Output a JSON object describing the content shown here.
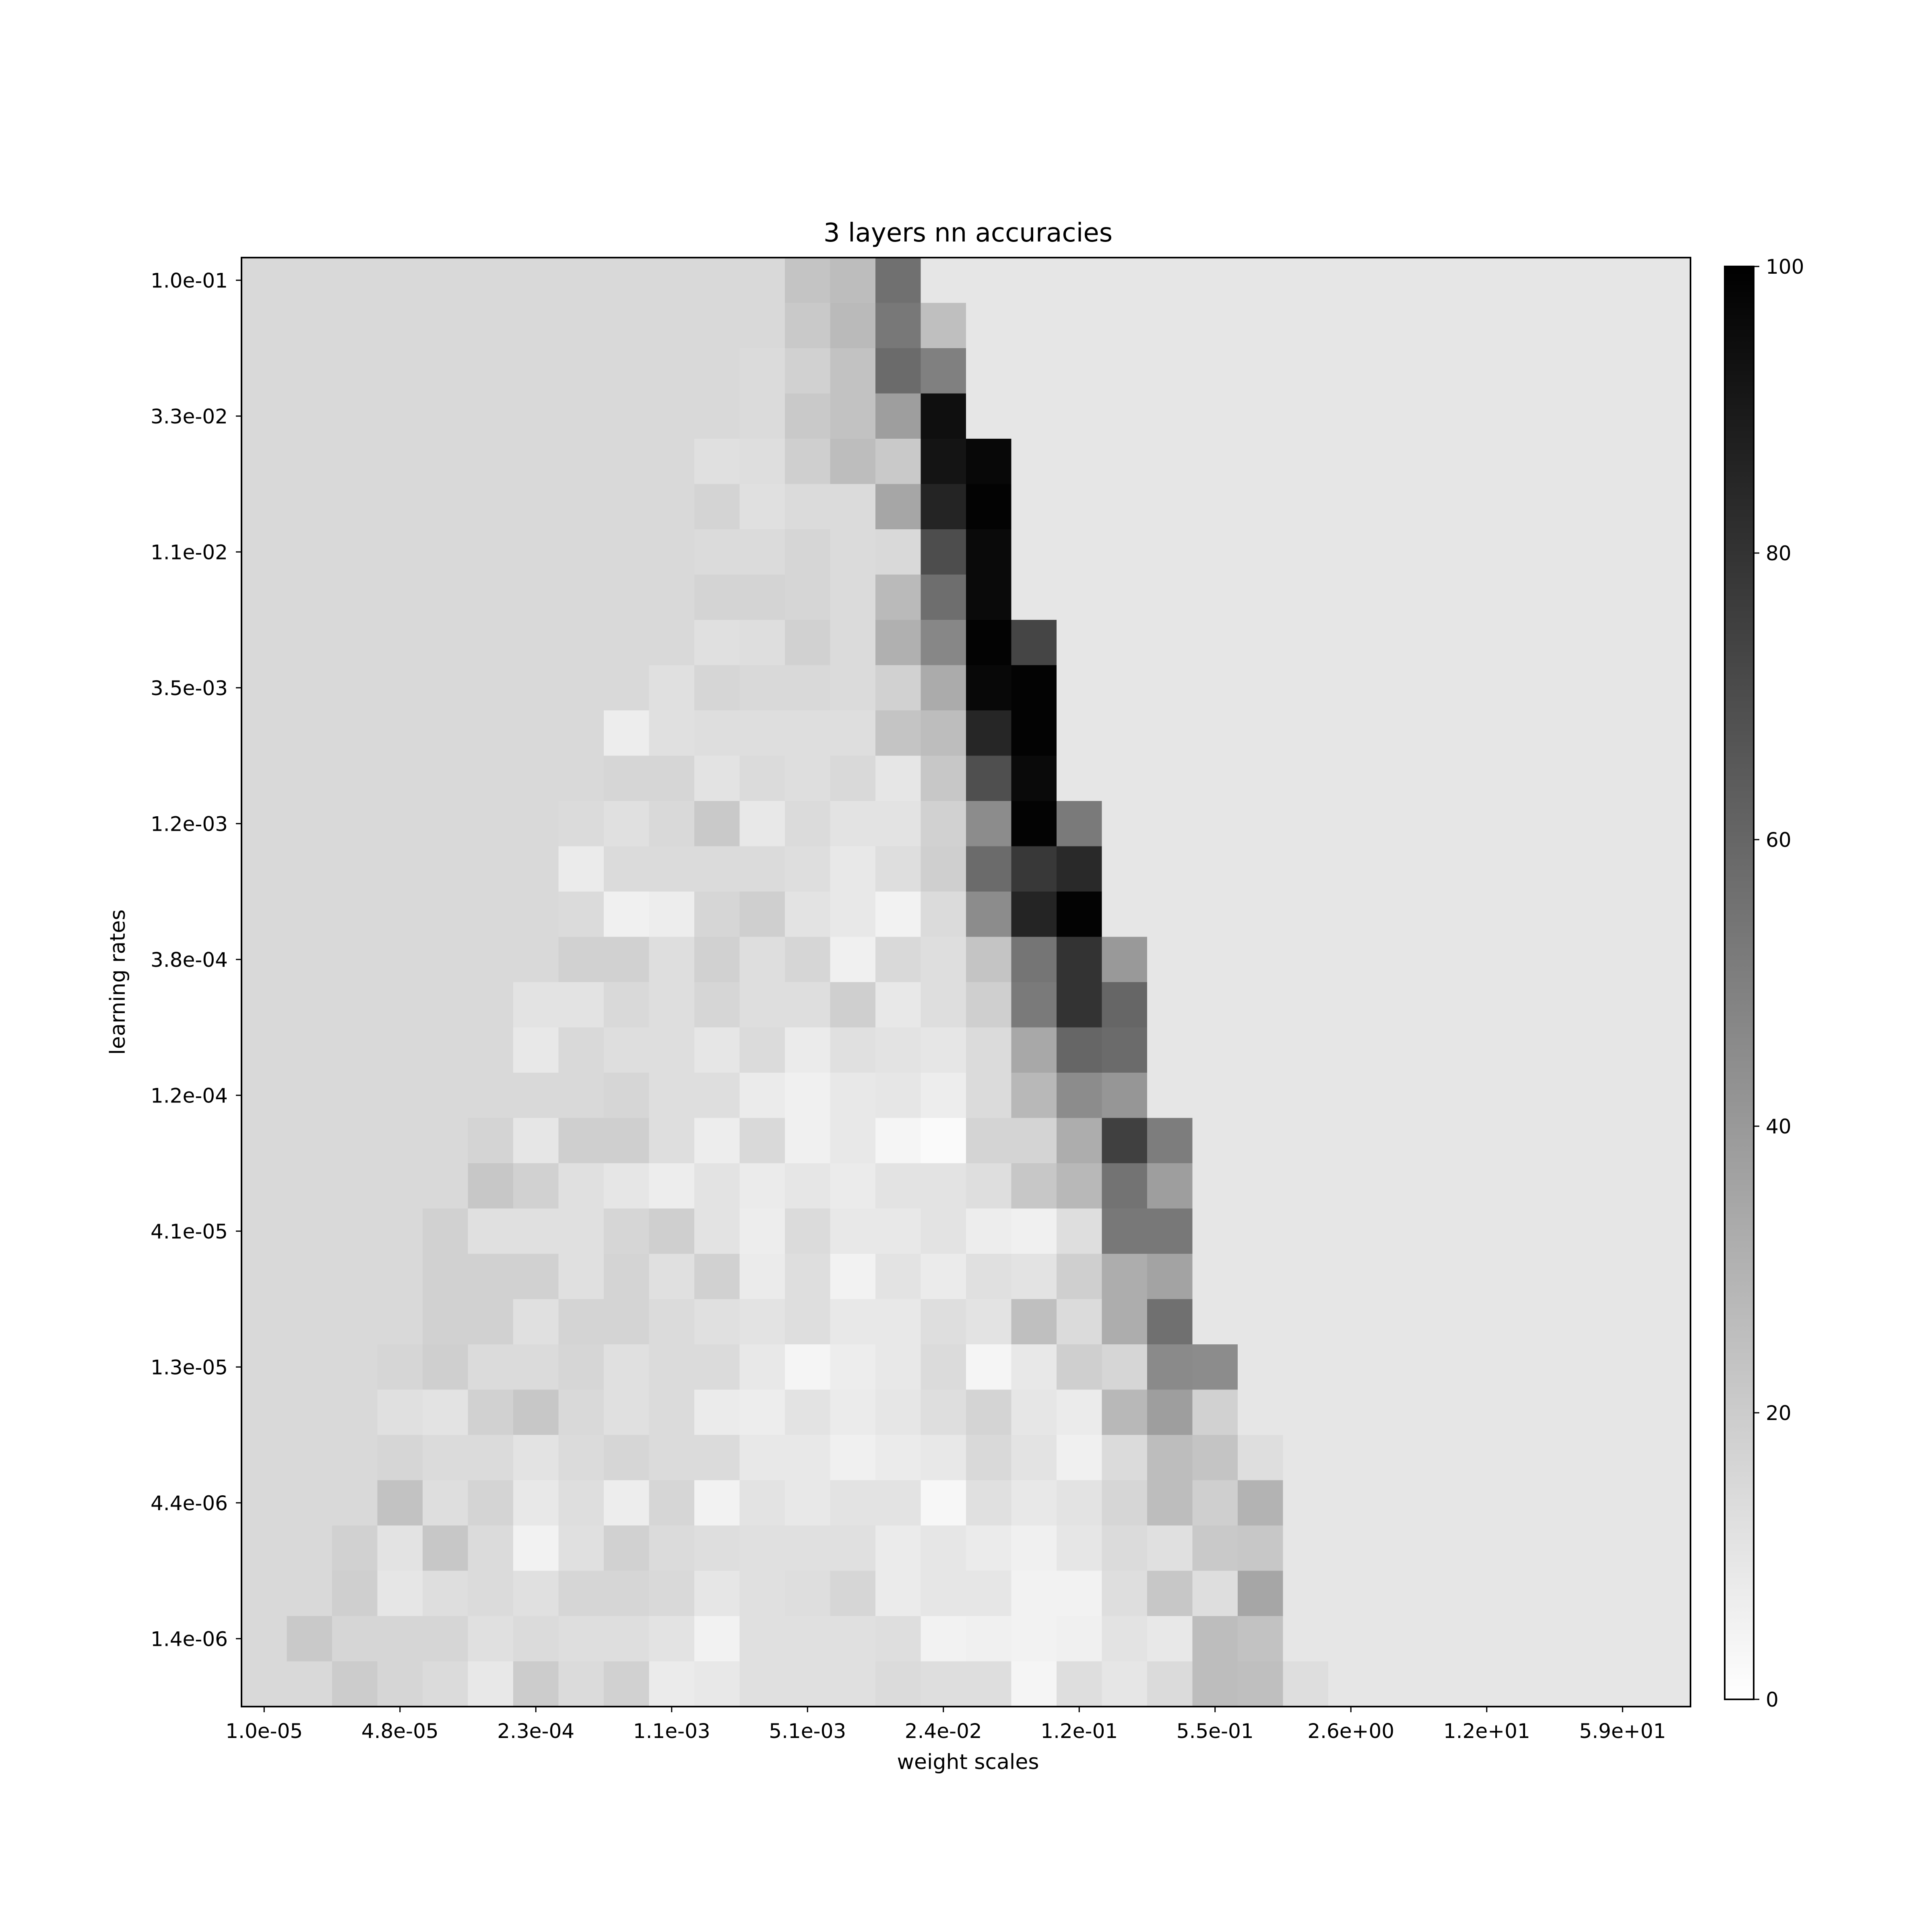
{
  "chart_data": {
    "type": "heatmap",
    "title": "3 layers nn accuracies",
    "xlabel": "weight scales",
    "ylabel": "learning rates",
    "colormap": "grayscale_reversed",
    "grid": false,
    "legend": "colorbar-right",
    "x_tick_labels": [
      "1.0e-05",
      "4.8e-05",
      "2.3e-04",
      "1.1e-03",
      "5.1e-03",
      "2.4e-02",
      "1.2e-01",
      "5.5e-01",
      "2.6e+00",
      "1.2e+01",
      "5.9e+01"
    ],
    "y_tick_labels": [
      "1.0e-01",
      "3.3e-02",
      "1.1e-02",
      "3.5e-03",
      "1.2e-03",
      "3.8e-04",
      "1.2e-04",
      "4.1e-05",
      "1.3e-05",
      "4.4e-06",
      "1.4e-06"
    ],
    "colorbar": {
      "min": 0,
      "max": 100,
      "ticks": [
        "0",
        "20",
        "40",
        "60",
        "80",
        "100"
      ]
    },
    "x_count": 32,
    "y_count": 32,
    "values": [
      [
        15,
        15,
        15,
        15,
        15,
        15,
        15,
        15,
        15,
        15,
        15,
        15,
        23,
        26,
        56,
        10,
        10,
        10,
        10,
        10,
        10,
        10,
        10,
        10,
        10,
        10,
        10,
        10,
        10,
        10,
        10,
        10
      ],
      [
        15,
        15,
        15,
        15,
        15,
        15,
        15,
        15,
        15,
        15,
        15,
        15,
        21,
        27,
        53,
        25,
        10,
        10,
        10,
        10,
        10,
        10,
        10,
        10,
        10,
        10,
        10,
        10,
        10,
        10,
        10,
        10
      ],
      [
        15,
        15,
        15,
        15,
        15,
        15,
        15,
        15,
        15,
        15,
        15,
        14,
        18,
        24,
        58,
        50,
        10,
        10,
        10,
        10,
        10,
        10,
        10,
        10,
        10,
        10,
        10,
        10,
        10,
        10,
        10,
        10
      ],
      [
        15,
        15,
        15,
        15,
        15,
        15,
        15,
        15,
        15,
        15,
        15,
        14,
        21,
        24,
        38,
        94,
        10,
        10,
        10,
        10,
        10,
        10,
        10,
        10,
        10,
        10,
        10,
        10,
        10,
        10,
        10,
        10
      ],
      [
        15,
        15,
        15,
        15,
        15,
        15,
        15,
        15,
        15,
        15,
        12,
        13,
        19,
        26,
        21,
        92,
        97,
        10,
        10,
        10,
        10,
        10,
        10,
        10,
        10,
        10,
        10,
        10,
        10,
        10,
        10,
        10
      ],
      [
        15,
        15,
        15,
        15,
        15,
        15,
        15,
        15,
        15,
        15,
        17,
        12,
        14,
        14,
        35,
        86,
        99,
        10,
        10,
        10,
        10,
        10,
        10,
        10,
        10,
        10,
        10,
        10,
        10,
        10,
        10,
        10
      ],
      [
        15,
        15,
        15,
        15,
        15,
        15,
        15,
        15,
        15,
        15,
        14,
        14,
        16,
        14,
        15,
        70,
        96,
        10,
        10,
        10,
        10,
        10,
        10,
        10,
        10,
        10,
        10,
        10,
        10,
        10,
        10,
        10
      ],
      [
        15,
        15,
        15,
        15,
        15,
        15,
        15,
        15,
        15,
        15,
        17,
        17,
        16,
        14,
        27,
        57,
        96,
        10,
        10,
        10,
        10,
        10,
        10,
        10,
        10,
        10,
        10,
        10,
        10,
        10,
        10,
        10
      ],
      [
        15,
        15,
        15,
        15,
        15,
        15,
        15,
        15,
        15,
        15,
        12,
        13,
        18,
        14,
        31,
        47,
        99,
        73,
        10,
        10,
        10,
        10,
        10,
        10,
        10,
        10,
        10,
        10,
        10,
        10,
        10,
        10
      ],
      [
        15,
        15,
        15,
        15,
        15,
        15,
        15,
        15,
        15,
        12,
        16,
        15,
        15,
        14,
        18,
        33,
        97,
        99,
        10,
        10,
        10,
        10,
        10,
        10,
        10,
        10,
        10,
        10,
        10,
        10,
        10,
        10
      ],
      [
        15,
        15,
        15,
        15,
        15,
        15,
        15,
        15,
        7,
        12,
        13,
        13,
        13,
        13,
        23,
        26,
        85,
        99,
        10,
        10,
        10,
        10,
        10,
        10,
        10,
        10,
        10,
        10,
        10,
        10,
        10,
        10
      ],
      [
        15,
        15,
        15,
        15,
        15,
        15,
        15,
        15,
        16,
        16,
        11,
        14,
        13,
        15,
        10,
        22,
        69,
        96,
        10,
        10,
        10,
        10,
        10,
        10,
        10,
        10,
        10,
        10,
        10,
        10,
        10,
        10
      ],
      [
        15,
        15,
        15,
        15,
        15,
        15,
        15,
        14,
        12,
        15,
        21,
        9,
        14,
        11,
        11,
        18,
        45,
        99,
        52,
        10,
        10,
        10,
        10,
        10,
        10,
        10,
        10,
        10,
        10,
        10,
        10,
        10
      ],
      [
        15,
        15,
        15,
        15,
        15,
        15,
        15,
        8,
        14,
        14,
        14,
        14,
        13,
        9,
        13,
        19,
        58,
        78,
        84,
        10,
        10,
        10,
        10,
        10,
        10,
        10,
        10,
        10,
        10,
        10,
        10,
        10
      ],
      [
        15,
        15,
        15,
        15,
        15,
        15,
        15,
        14,
        6,
        7,
        16,
        19,
        11,
        9,
        5,
        14,
        45,
        86,
        99,
        10,
        10,
        10,
        10,
        10,
        10,
        10,
        10,
        10,
        10,
        10,
        10,
        10
      ],
      [
        15,
        15,
        15,
        15,
        15,
        15,
        15,
        18,
        18,
        13,
        18,
        13,
        16,
        6,
        15,
        13,
        23,
        54,
        80,
        40,
        10,
        10,
        10,
        10,
        10,
        10,
        10,
        10,
        10,
        10,
        10,
        10
      ],
      [
        15,
        15,
        15,
        15,
        15,
        15,
        11,
        11,
        15,
        13,
        16,
        13,
        13,
        19,
        9,
        13,
        19,
        52,
        80,
        60,
        10,
        10,
        10,
        10,
        10,
        10,
        10,
        10,
        10,
        10,
        10,
        10
      ],
      [
        15,
        15,
        15,
        15,
        15,
        15,
        9,
        15,
        13,
        13,
        10,
        14,
        8,
        12,
        11,
        10,
        14,
        34,
        60,
        58,
        10,
        10,
        10,
        10,
        10,
        10,
        10,
        10,
        10,
        10,
        10,
        10
      ],
      [
        15,
        15,
        15,
        15,
        15,
        15,
        15,
        15,
        16,
        13,
        13,
        8,
        6,
        9,
        10,
        7,
        14,
        28,
        45,
        41,
        10,
        10,
        10,
        10,
        10,
        10,
        10,
        10,
        10,
        10,
        10,
        10
      ],
      [
        15,
        15,
        15,
        15,
        15,
        17,
        10,
        19,
        19,
        13,
        7,
        15,
        6,
        9,
        4,
        2,
        17,
        17,
        32,
        75,
        51,
        10,
        10,
        10,
        10,
        10,
        10,
        10,
        10,
        10,
        10,
        10
      ],
      [
        15,
        15,
        15,
        15,
        15,
        22,
        18,
        12,
        10,
        7,
        11,
        8,
        10,
        8,
        11,
        11,
        13,
        22,
        28,
        55,
        38,
        10,
        10,
        10,
        10,
        10,
        10,
        10,
        10,
        10,
        10,
        10
      ],
      [
        15,
        15,
        15,
        15,
        18,
        12,
        12,
        12,
        16,
        19,
        11,
        7,
        14,
        9,
        9,
        11,
        7,
        6,
        13,
        53,
        53,
        10,
        10,
        10,
        10,
        10,
        10,
        10,
        10,
        10,
        10,
        10
      ],
      [
        15,
        15,
        15,
        15,
        18,
        18,
        18,
        12,
        17,
        12,
        18,
        8,
        13,
        5,
        11,
        8,
        12,
        11,
        19,
        32,
        36,
        10,
        10,
        10,
        10,
        10,
        10,
        10,
        10,
        10,
        10,
        10
      ],
      [
        15,
        15,
        15,
        15,
        18,
        18,
        12,
        17,
        17,
        14,
        12,
        11,
        13,
        9,
        9,
        13,
        11,
        25,
        14,
        32,
        56,
        10,
        10,
        10,
        10,
        10,
        10,
        10,
        10,
        10,
        10,
        10
      ],
      [
        15,
        15,
        15,
        16,
        19,
        14,
        14,
        16,
        12,
        14,
        14,
        9,
        4,
        7,
        9,
        14,
        4,
        9,
        19,
        16,
        46,
        45,
        10,
        10,
        10,
        10,
        10,
        10,
        10,
        10,
        10,
        10
      ],
      [
        15,
        15,
        15,
        12,
        11,
        18,
        22,
        15,
        12,
        14,
        8,
        7,
        11,
        8,
        10,
        13,
        17,
        10,
        8,
        28,
        38,
        18,
        10,
        10,
        10,
        10,
        10,
        10,
        10,
        10,
        10,
        10
      ],
      [
        15,
        15,
        15,
        16,
        14,
        14,
        11,
        14,
        16,
        14,
        14,
        9,
        9,
        6,
        8,
        9,
        15,
        11,
        6,
        14,
        26,
        23,
        13,
        10,
        10,
        10,
        10,
        10,
        10,
        10,
        10,
        10
      ],
      [
        15,
        15,
        15,
        24,
        13,
        17,
        9,
        13,
        7,
        16,
        5,
        11,
        9,
        11,
        11,
        3,
        12,
        9,
        11,
        16,
        26,
        19,
        30,
        10,
        10,
        10,
        10,
        10,
        10,
        10,
        10,
        10
      ],
      [
        15,
        15,
        18,
        11,
        22,
        14,
        5,
        12,
        18,
        14,
        13,
        12,
        12,
        12,
        8,
        10,
        8,
        6,
        10,
        14,
        12,
        21,
        22,
        10,
        10,
        10,
        10,
        10,
        10,
        10,
        10,
        10
      ],
      [
        15,
        15,
        19,
        10,
        13,
        14,
        12,
        16,
        16,
        15,
        10,
        12,
        13,
        16,
        8,
        10,
        10,
        5,
        5,
        13,
        22,
        13,
        35,
        10,
        10,
        10,
        10,
        10,
        10,
        10,
        10,
        10
      ],
      [
        15,
        21,
        16,
        16,
        16,
        12,
        14,
        13,
        13,
        11,
        5,
        12,
        12,
        12,
        13,
        5,
        6,
        5,
        6,
        11,
        9,
        26,
        24,
        10,
        10,
        10,
        10,
        10,
        10,
        10,
        10,
        10
      ],
      [
        15,
        15,
        20,
        16,
        14,
        9,
        20,
        14,
        18,
        8,
        9,
        12,
        12,
        12,
        14,
        13,
        13,
        4,
        13,
        10,
        14,
        26,
        25,
        13,
        10,
        10,
        10,
        10,
        10,
        10,
        10,
        10
      ]
    ]
  }
}
